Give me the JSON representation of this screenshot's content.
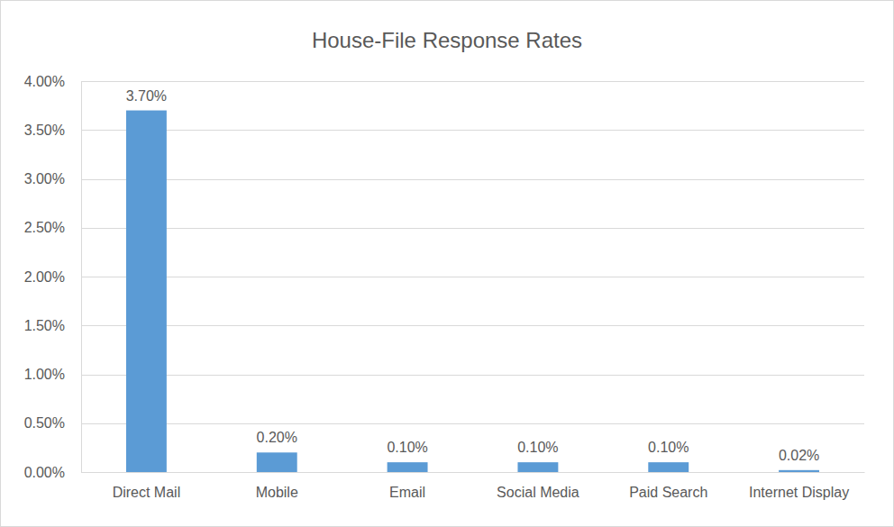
{
  "chart_data": {
    "type": "bar",
    "title": "House-File Response Rates",
    "categories": [
      "Direct Mail",
      "Mobile",
      "Email",
      "Social Media",
      "Paid Search",
      "Internet Display"
    ],
    "values": [
      3.7,
      0.2,
      0.1,
      0.1,
      0.1,
      0.02
    ],
    "value_labels": [
      "3.70%",
      "0.20%",
      "0.10%",
      "0.10%",
      "0.10%",
      "0.02%"
    ],
    "color": "#5b9bd5",
    "ylim": [
      0,
      4
    ],
    "yticks": [
      {
        "value": 0,
        "label": "0.00%"
      },
      {
        "value": 0.5,
        "label": "0.50%"
      },
      {
        "value": 1,
        "label": "1.00%"
      },
      {
        "value": 1.5,
        "label": "1.50%"
      },
      {
        "value": 2,
        "label": "2.00%"
      },
      {
        "value": 2.5,
        "label": "2.50%"
      },
      {
        "value": 3,
        "label": "3.00%"
      },
      {
        "value": 3.5,
        "label": "3.50%"
      },
      {
        "value": 4,
        "label": "4.00%"
      }
    ],
    "grid": true,
    "data_labels": true
  }
}
